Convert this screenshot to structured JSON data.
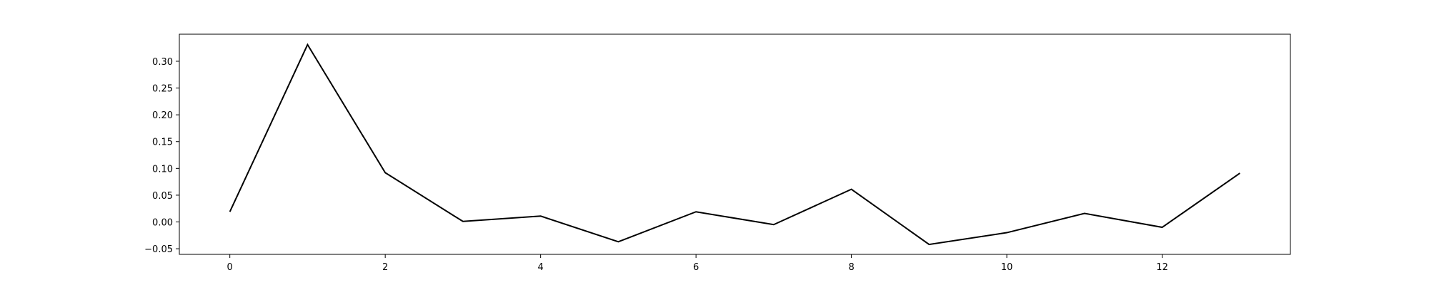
{
  "chart_data": {
    "type": "line",
    "title": "",
    "xlabel": "",
    "ylabel": "",
    "xlim": [
      -0.65,
      13.65
    ],
    "ylim": [
      -0.0605,
      0.3505
    ],
    "x_ticks": [
      0,
      2,
      4,
      6,
      8,
      10,
      12
    ],
    "y_ticks": [
      -0.05,
      0.0,
      0.05,
      0.1,
      0.15,
      0.2,
      0.25,
      0.3
    ],
    "y_tick_labels": [
      "−0.05",
      "0.00",
      "0.05",
      "0.10",
      "0.15",
      "0.20",
      "0.25",
      "0.30"
    ],
    "x_tick_labels": [
      "0",
      "2",
      "4",
      "6",
      "8",
      "10",
      "12"
    ],
    "grid": false,
    "legend": "none",
    "series": [
      {
        "x": [
          0,
          1,
          2,
          3,
          4,
          5,
          6,
          7,
          8,
          9,
          10,
          11,
          12,
          13
        ],
        "values": [
          0.019,
          0.331,
          0.092,
          0.001,
          0.011,
          -0.037,
          0.019,
          -0.005,
          0.061,
          -0.042,
          -0.02,
          0.016,
          -0.01,
          0.091
        ],
        "color": "#000000"
      }
    ]
  }
}
